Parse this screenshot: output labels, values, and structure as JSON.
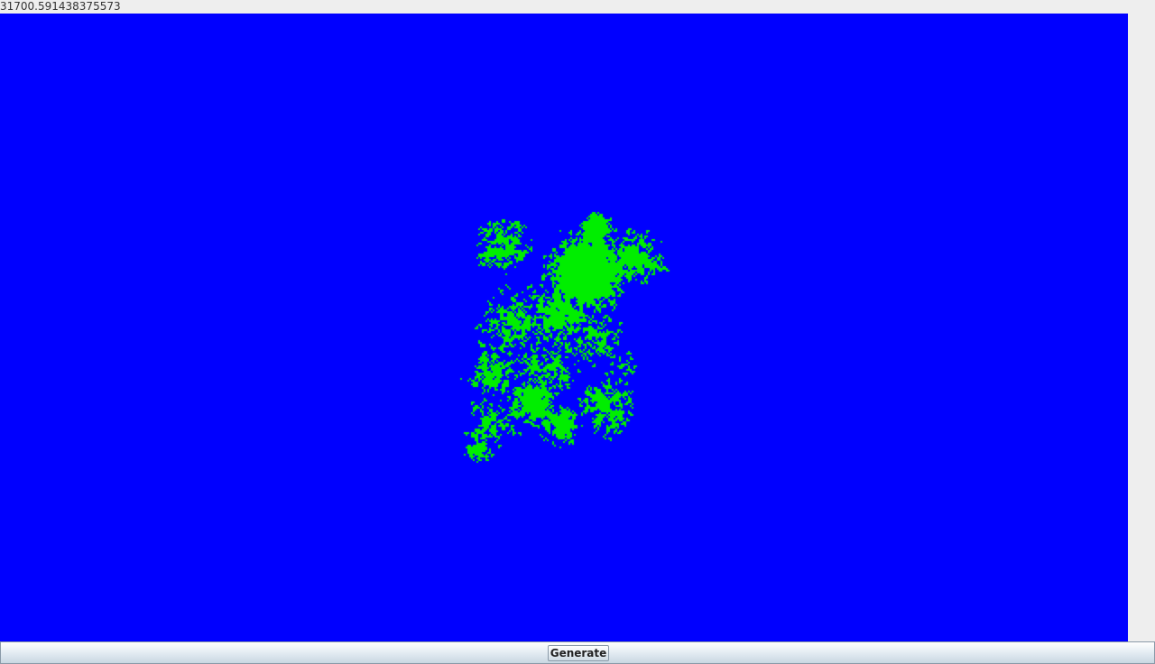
{
  "readout": {
    "value": "31700.591438375573"
  },
  "map": {
    "ocean_color": "#0000ff",
    "land_color": "#00ee00",
    "description_icon": "procedural-island-map"
  },
  "toolbar": {
    "generate_label": "Generate"
  }
}
